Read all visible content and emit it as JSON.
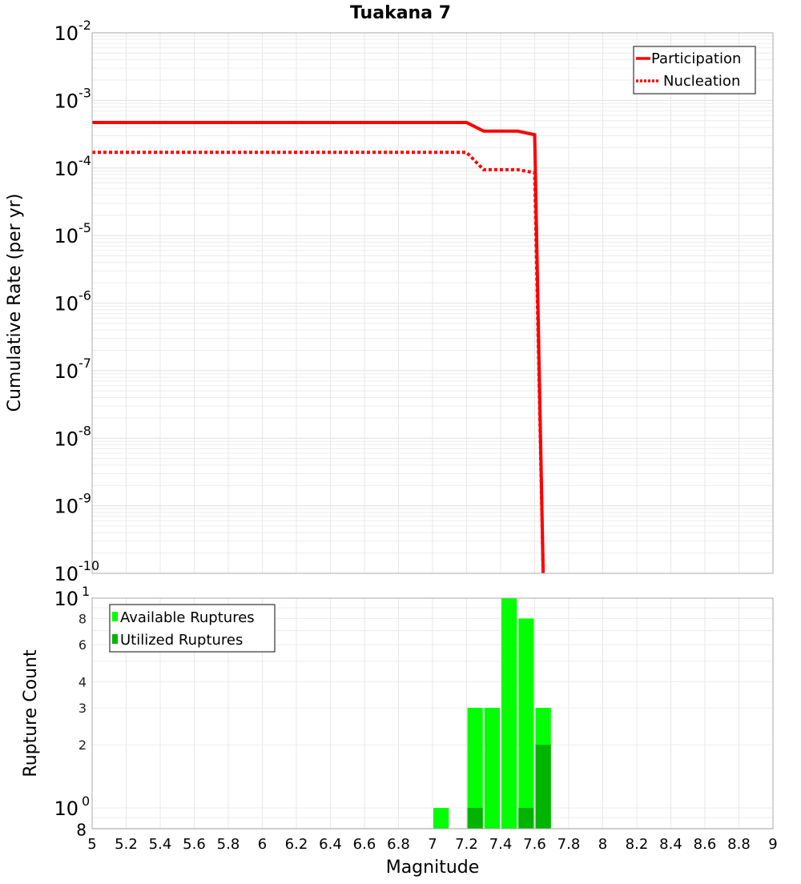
{
  "chart_data": [
    {
      "type": "line",
      "title": "Tuakana 7",
      "xlabel": "",
      "ylabel": "Cumulative Rate (per yr)",
      "xlim": [
        5,
        9
      ],
      "ylim": [
        1e-10,
        0.01
      ],
      "yscale": "log",
      "grid": true,
      "legend_position": "upper right",
      "y_tick_labels": [
        {
          "base": "10",
          "exp": "-2",
          "value": -2
        },
        {
          "base": "10",
          "exp": "-3",
          "value": -3
        },
        {
          "base": "10",
          "exp": "-4",
          "value": -4
        },
        {
          "base": "10",
          "exp": "-5",
          "value": -5
        },
        {
          "base": "10",
          "exp": "-6",
          "value": -6
        },
        {
          "base": "10",
          "exp": "-7",
          "value": -7
        },
        {
          "base": "10",
          "exp": "-8",
          "value": -8
        },
        {
          "base": "10",
          "exp": "-9",
          "value": -9
        },
        {
          "base": "10",
          "exp": "-10",
          "value": -10
        }
      ],
      "series": [
        {
          "name": "Participation",
          "color": "#ff0000",
          "style": "solid",
          "x": [
            5.0,
            7.2,
            7.3,
            7.5,
            7.6,
            7.65
          ],
          "y": [
            0.00047,
            0.00047,
            0.00035,
            0.00035,
            0.00031,
            1e-10
          ]
        },
        {
          "name": "Nucleation",
          "color": "#ff0000",
          "style": "dotted",
          "x": [
            5.0,
            7.2,
            7.3,
            7.5,
            7.6,
            7.65
          ],
          "y": [
            0.00017,
            0.00017,
            9.4e-05,
            9.4e-05,
            8.5e-05,
            1e-10
          ]
        }
      ]
    },
    {
      "type": "bar",
      "title": "",
      "xlabel": "Magnitude",
      "ylabel": "Rupture Count",
      "xlim": [
        5,
        9
      ],
      "ylim": [
        0.8,
        10
      ],
      "yscale": "log",
      "grid": true,
      "legend_position": "upper left",
      "x_tick_labels": [
        "5",
        "5.2",
        "5.4",
        "5.6",
        "5.8",
        "6",
        "6.2",
        "6.4",
        "6.6",
        "6.8",
        "7",
        "7.2",
        "7.4",
        "7.6",
        "7.8",
        "8",
        "8.2",
        "8.4",
        "8.6",
        "8.8",
        "9"
      ],
      "y_tick_labels_major": [
        {
          "base": "10",
          "exp": "1",
          "value": 10
        },
        {
          "base": "10",
          "exp": "0",
          "value": 1
        }
      ],
      "y_tick_labels_minor": [
        {
          "label": "8",
          "value": 8
        },
        {
          "label": "6",
          "value": 6
        },
        {
          "label": "4",
          "value": 4
        },
        {
          "label": "3",
          "value": 3
        },
        {
          "label": "2",
          "value": 2
        },
        {
          "label": "8",
          "value": 0.8
        }
      ],
      "bin_width": 0.1,
      "categories": [
        7.05,
        7.25,
        7.35,
        7.45,
        7.55,
        7.65
      ],
      "series": [
        {
          "name": "Available Ruptures",
          "color": "#00ff00",
          "values": [
            1,
            3,
            3,
            10,
            8,
            3
          ]
        },
        {
          "name": "Utilized Ruptures",
          "color": "#00b400",
          "values": [
            0,
            1,
            0,
            0,
            1,
            2
          ]
        }
      ]
    }
  ]
}
